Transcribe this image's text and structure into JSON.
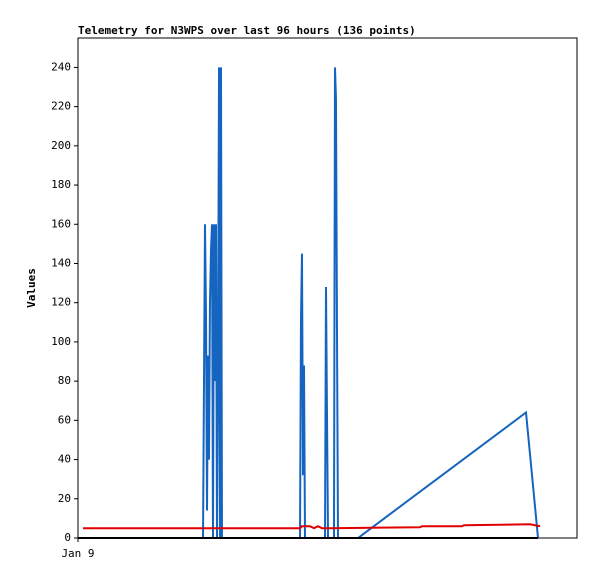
{
  "chart_data": {
    "type": "line",
    "title": "Telemetry for N3WPS over last 96 hours (136 points)",
    "y_label": "Values",
    "xlim": [
      0,
      96
    ],
    "xticks": [
      {
        "value": 0,
        "label": "Jan 9"
      }
    ],
    "ylim": [
      0,
      255
    ],
    "yticks": [
      0,
      20,
      40,
      60,
      80,
      100,
      120,
      140,
      160,
      180,
      200,
      220,
      240
    ],
    "series": [
      {
        "color": "#1565c0",
        "x": [
          0,
          24.05,
          24.24,
          24.43,
          24.63,
          24.82,
          25.01,
          25.2,
          25.39,
          25.59,
          25.78,
          25.97,
          26.16,
          26.36,
          26.55,
          26.74,
          26.93,
          27.13,
          27.32,
          27.51,
          27.7,
          42.71,
          42.9,
          43.09,
          43.29,
          43.48,
          43.67,
          47.52,
          47.71,
          47.9,
          48.1,
          49.25,
          49.44,
          49.63,
          49.83,
          50.02,
          53.87,
          86.19,
          88.5
        ],
        "values": [
          0,
          0,
          80,
          160,
          112,
          14,
          93,
          40,
          120,
          147,
          160,
          0,
          160,
          80,
          160,
          0,
          80,
          240,
          0,
          240,
          0,
          0,
          112,
          145,
          32,
          88,
          0,
          0,
          128,
          64,
          0,
          0,
          240,
          224,
          104,
          0,
          0,
          64,
          0
        ]
      },
      {
        "color": "#e00000",
        "x": [
          0.96,
          42.71,
          43.09,
          44.63,
          45.4,
          46.17,
          46.94,
          48.48,
          65.79,
          66.18,
          73.87,
          74.26,
          86.96,
          88.88
        ],
        "values": [
          5,
          5,
          6,
          6,
          5,
          6,
          5,
          5,
          5.5,
          6,
          6,
          6.5,
          7,
          6
        ]
      },
      {
        "color": "#000000",
        "x": [
          0,
          88.5
        ],
        "values": [
          0,
          0
        ]
      }
    ]
  }
}
